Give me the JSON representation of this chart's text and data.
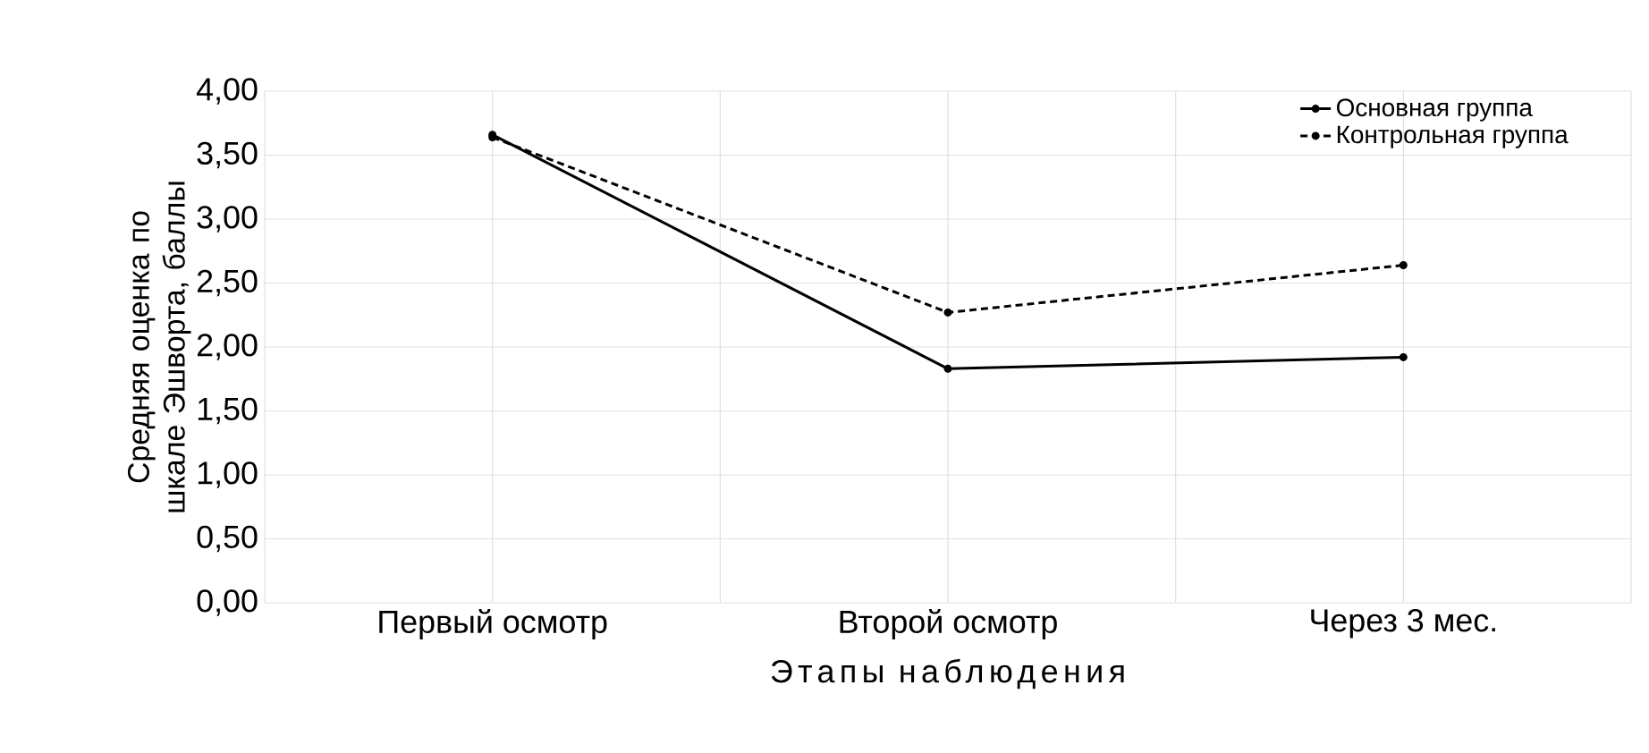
{
  "chart_data": {
    "type": "line",
    "xlabel": "Этапы наблюдения",
    "ylabel": "Средняя оценка по шкале Эшворта, баллы",
    "categories": [
      "Первый осмотр",
      "Второй осмотр",
      "Через 3 мес."
    ],
    "series": [
      {
        "name": "Основная группа",
        "color": "#000000",
        "values": [
          3.66,
          1.83,
          1.92
        ],
        "line_style": "solid"
      },
      {
        "name": "Контрольная группа",
        "color": "#000000",
        "values": [
          3.64,
          2.27,
          2.64
        ],
        "line_style": "dashed"
      }
    ],
    "ylim": [
      0,
      4
    ],
    "yticks": [
      {
        "value": 0,
        "label": "0,00"
      },
      {
        "value": 0.5,
        "label": "0,50"
      },
      {
        "value": 1,
        "label": "1,00"
      },
      {
        "value": 1.5,
        "label": "1,50"
      },
      {
        "value": 2,
        "label": "2,00"
      },
      {
        "value": 2.5,
        "label": "2,50"
      },
      {
        "value": 3,
        "label": "3,00"
      },
      {
        "value": 3.5,
        "label": "3,50"
      },
      {
        "value": 4,
        "label": "4,00"
      }
    ],
    "grid": true,
    "legend": "top right",
    "marker": "circle"
  }
}
